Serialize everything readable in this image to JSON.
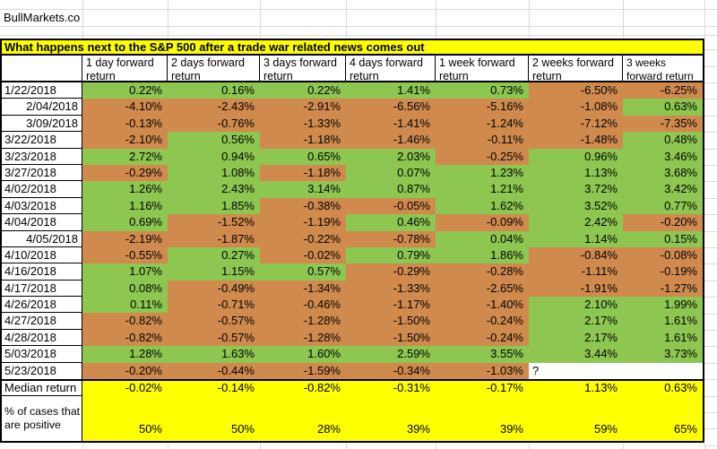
{
  "app": {
    "site_label": "BullMarkets.co"
  },
  "colors": {
    "positive": "#8DC650",
    "negative": "#D08A4E",
    "highlight": "#FFFF00",
    "gridline": "#D9D9D9",
    "border": "#000000"
  },
  "table": {
    "title": "What happens next to the S&P 500 after a trade war related news comes out",
    "columns": [
      "1 day forward return",
      "2 days forward return",
      "3 days forward return",
      "4 days forward return",
      "1 week forward return",
      "2 weeks forward return",
      "3 weeks forward return"
    ],
    "rows": [
      {
        "date": "1/22/2018",
        "align": "left",
        "values": [
          "0.22%",
          "0.16%",
          "0.22%",
          "1.41%",
          "0.73%",
          "-6.50%",
          "-6.25%"
        ]
      },
      {
        "date": "2/04/2018",
        "align": "right",
        "values": [
          "-4.10%",
          "-2.43%",
          "-2.91%",
          "-6.56%",
          "-5.16%",
          "-1.08%",
          "0.63%"
        ]
      },
      {
        "date": "3/09/2018",
        "align": "right",
        "values": [
          "-0.13%",
          "-0.76%",
          "-1.33%",
          "-1.41%",
          "-1.24%",
          "-7.12%",
          "-7.35%"
        ]
      },
      {
        "date": "3/22/2018",
        "align": "left",
        "values": [
          "-2.10%",
          "0.56%",
          "-1.18%",
          "-1.46%",
          "-0.11%",
          "-1.48%",
          "0.48%"
        ]
      },
      {
        "date": "3/23/2018",
        "align": "left",
        "values": [
          "2.72%",
          "0.94%",
          "0.65%",
          "2.03%",
          "-0.25%",
          "0.96%",
          "3.46%"
        ]
      },
      {
        "date": "3/27/2018",
        "align": "left",
        "values": [
          "-0.29%",
          "1.08%",
          "-1.18%",
          "0.07%",
          "1.23%",
          "1.13%",
          "3.68%"
        ]
      },
      {
        "date": "4/02/2018",
        "align": "left",
        "values": [
          "1.26%",
          "2.43%",
          "3.14%",
          "0.87%",
          "1.21%",
          "3.72%",
          "3.42%"
        ]
      },
      {
        "date": "4/03/2018",
        "align": "left",
        "values": [
          "1.16%",
          "1.85%",
          "-0.38%",
          "-0.05%",
          "1.62%",
          "3.52%",
          "0.77%"
        ]
      },
      {
        "date": "4/04/2018",
        "align": "left",
        "values": [
          "0.69%",
          "-1.52%",
          "-1.19%",
          "0.46%",
          "-0.09%",
          "2.42%",
          "-0.20%"
        ]
      },
      {
        "date": "4/05/2018",
        "align": "right",
        "values": [
          "-2.19%",
          "-1.87%",
          "-0.22%",
          "-0.78%",
          "0.04%",
          "1.14%",
          "0.15%"
        ]
      },
      {
        "date": "4/10/2018",
        "align": "left",
        "values": [
          "-0.55%",
          "0.27%",
          "-0.02%",
          "0.79%",
          "1.86%",
          "-0.84%",
          "-0.08%"
        ]
      },
      {
        "date": "4/16/2018",
        "align": "left",
        "values": [
          "1.07%",
          "1.15%",
          "0.57%",
          "-0.29%",
          "-0.28%",
          "-1.11%",
          "-0.19%"
        ]
      },
      {
        "date": "4/17/2018",
        "align": "left",
        "values": [
          "0.08%",
          "-0.49%",
          "-1.34%",
          "-1.33%",
          "-2.65%",
          "-1.91%",
          "-1.27%"
        ]
      },
      {
        "date": "4/26/2018",
        "align": "left",
        "values": [
          "0.11%",
          "-0.71%",
          "-0.46%",
          "-1.17%",
          "-1.40%",
          "2.10%",
          "1.99%"
        ]
      },
      {
        "date": "4/27/2018",
        "align": "left",
        "values": [
          "-0.82%",
          "-0.57%",
          "-1.28%",
          "-1.50%",
          "-0.24%",
          "2.17%",
          "1.61%"
        ]
      },
      {
        "date": "4/28/2018",
        "align": "left",
        "values": [
          "-0.82%",
          "-0.57%",
          "-1.28%",
          "-1.50%",
          "-0.24%",
          "2.17%",
          "1.61%"
        ]
      },
      {
        "date": "5/03/2018",
        "align": "left",
        "values": [
          "1.28%",
          "1.63%",
          "1.60%",
          "2.59%",
          "3.55%",
          "3.44%",
          "3.73%"
        ]
      },
      {
        "date": "5/23/2018",
        "align": "left",
        "values": [
          "-0.20%",
          "-0.44%",
          "-1.59%",
          "-0.34%",
          "-1.03%",
          "?",
          ""
        ]
      }
    ],
    "median": {
      "label": "Median return",
      "values": [
        "-0.02%",
        "-0.14%",
        "-0.82%",
        "-0.31%",
        "-0.17%",
        "1.13%",
        "0.63%"
      ]
    },
    "pct_positive": {
      "label": "% of cases that are positive",
      "values": [
        "50%",
        "50%",
        "28%",
        "39%",
        "39%",
        "59%",
        "65%"
      ]
    }
  },
  "chart_data": {
    "type": "table",
    "title": "What happens next to the S&P 500 after a trade war related news comes out",
    "columns": [
      "1 day forward return",
      "2 days forward return",
      "3 days forward return",
      "4 days forward return",
      "1 week forward return",
      "2 weeks forward return",
      "3 weeks forward return"
    ],
    "rows": [
      {
        "date": "1/22/2018",
        "returns_pct": [
          0.22,
          0.16,
          0.22,
          1.41,
          0.73,
          -6.5,
          -6.25
        ]
      },
      {
        "date": "2/04/2018",
        "returns_pct": [
          -4.1,
          -2.43,
          -2.91,
          -6.56,
          -5.16,
          -1.08,
          0.63
        ]
      },
      {
        "date": "3/09/2018",
        "returns_pct": [
          -0.13,
          -0.76,
          -1.33,
          -1.41,
          -1.24,
          -7.12,
          -7.35
        ]
      },
      {
        "date": "3/22/2018",
        "returns_pct": [
          -2.1,
          0.56,
          -1.18,
          -1.46,
          -0.11,
          -1.48,
          0.48
        ]
      },
      {
        "date": "3/23/2018",
        "returns_pct": [
          2.72,
          0.94,
          0.65,
          2.03,
          -0.25,
          0.96,
          3.46
        ]
      },
      {
        "date": "3/27/2018",
        "returns_pct": [
          -0.29,
          1.08,
          -1.18,
          0.07,
          1.23,
          1.13,
          3.68
        ]
      },
      {
        "date": "4/02/2018",
        "returns_pct": [
          1.26,
          2.43,
          3.14,
          0.87,
          1.21,
          3.72,
          3.42
        ]
      },
      {
        "date": "4/03/2018",
        "returns_pct": [
          1.16,
          1.85,
          -0.38,
          -0.05,
          1.62,
          3.52,
          0.77
        ]
      },
      {
        "date": "4/04/2018",
        "returns_pct": [
          0.69,
          -1.52,
          -1.19,
          0.46,
          -0.09,
          2.42,
          -0.2
        ]
      },
      {
        "date": "4/05/2018",
        "returns_pct": [
          -2.19,
          -1.87,
          -0.22,
          -0.78,
          0.04,
          1.14,
          0.15
        ]
      },
      {
        "date": "4/10/2018",
        "returns_pct": [
          -0.55,
          0.27,
          -0.02,
          0.79,
          1.86,
          -0.84,
          -0.08
        ]
      },
      {
        "date": "4/16/2018",
        "returns_pct": [
          1.07,
          1.15,
          0.57,
          -0.29,
          -0.28,
          -1.11,
          -0.19
        ]
      },
      {
        "date": "4/17/2018",
        "returns_pct": [
          0.08,
          -0.49,
          -1.34,
          -1.33,
          -2.65,
          -1.91,
          -1.27
        ]
      },
      {
        "date": "4/26/2018",
        "returns_pct": [
          0.11,
          -0.71,
          -0.46,
          -1.17,
          -1.4,
          2.1,
          1.99
        ]
      },
      {
        "date": "4/27/2018",
        "returns_pct": [
          -0.82,
          -0.57,
          -1.28,
          -1.5,
          -0.24,
          2.17,
          1.61
        ]
      },
      {
        "date": "4/28/2018",
        "returns_pct": [
          -0.82,
          -0.57,
          -1.28,
          -1.5,
          -0.24,
          2.17,
          1.61
        ]
      },
      {
        "date": "5/03/2018",
        "returns_pct": [
          1.28,
          1.63,
          1.6,
          2.59,
          3.55,
          3.44,
          3.73
        ]
      },
      {
        "date": "5/23/2018",
        "returns_pct": [
          -0.2,
          -0.44,
          -1.59,
          -0.34,
          -1.03,
          null,
          null
        ]
      }
    ],
    "median_return_pct": [
      -0.02,
      -0.14,
      -0.82,
      -0.31,
      -0.17,
      1.13,
      0.63
    ],
    "pct_of_cases_positive": [
      50,
      50,
      28,
      39,
      39,
      59,
      65
    ],
    "cell_color_rule": "green = non-negative return, orange = negative return, yellow = summary rows, white = unavailable (?)"
  }
}
